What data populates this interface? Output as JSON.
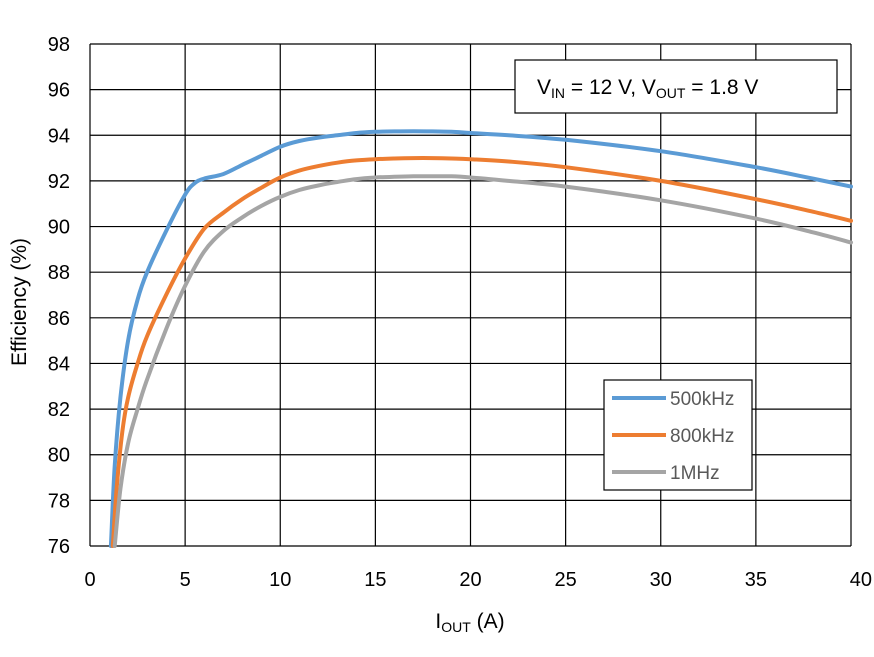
{
  "chart_data": {
    "type": "line",
    "title": "",
    "xlabel": {
      "main": "I",
      "sub": "OUT",
      "rest": " (A)"
    },
    "ylabel": "Efficiency (%)",
    "xlim": [
      0,
      40
    ],
    "ylim": [
      76,
      98
    ],
    "x_ticks": [
      "0",
      "5",
      "10",
      "15",
      "20",
      "25",
      "30",
      "35",
      "40"
    ],
    "y_ticks": [
      "76",
      "78",
      "80",
      "82",
      "84",
      "86",
      "88",
      "90",
      "92",
      "94",
      "96",
      "98"
    ],
    "grid": true,
    "annotation": {
      "v1": "V",
      "v1_sub": "IN",
      "mid": " = 12 V, V",
      "v2_sub": "OUT",
      "end": " = 1.8 V"
    },
    "legend_position": "bottom-right",
    "series": [
      {
        "name": "500kHz",
        "color": "#5B9BD5",
        "points": [
          [
            1.1,
            76
          ],
          [
            1.3,
            79.5
          ],
          [
            1.6,
            82.5
          ],
          [
            2,
            85
          ],
          [
            2.5,
            86.8
          ],
          [
            3,
            88
          ],
          [
            4,
            89.8
          ],
          [
            5,
            91.4
          ],
          [
            5.5,
            91.9
          ],
          [
            6,
            92.1
          ],
          [
            7,
            92.3
          ],
          [
            8,
            92.7
          ],
          [
            9,
            93.1
          ],
          [
            10,
            93.5
          ],
          [
            11,
            93.75
          ],
          [
            12,
            93.9
          ],
          [
            13,
            94.0
          ],
          [
            14,
            94.1
          ],
          [
            15,
            94.15
          ],
          [
            16,
            94.17
          ],
          [
            17,
            94.18
          ],
          [
            18,
            94.17
          ],
          [
            19,
            94.15
          ],
          [
            20,
            94.1
          ],
          [
            22,
            94.0
          ],
          [
            25,
            93.8
          ],
          [
            30,
            93.3
          ],
          [
            35,
            92.6
          ],
          [
            38,
            92.1
          ],
          [
            40,
            91.75
          ]
        ]
      },
      {
        "name": "800kHz",
        "color": "#ED7D31",
        "points": [
          [
            1.2,
            76
          ],
          [
            1.4,
            78.5
          ],
          [
            1.7,
            81
          ],
          [
            2,
            82.5
          ],
          [
            2.5,
            84
          ],
          [
            3,
            85.2
          ],
          [
            4,
            87
          ],
          [
            5,
            88.6
          ],
          [
            6,
            89.9
          ],
          [
            7,
            90.6
          ],
          [
            8,
            91.2
          ],
          [
            9,
            91.7
          ],
          [
            10,
            92.15
          ],
          [
            11,
            92.45
          ],
          [
            12,
            92.65
          ],
          [
            13,
            92.8
          ],
          [
            14,
            92.9
          ],
          [
            15,
            92.95
          ],
          [
            16,
            92.98
          ],
          [
            17,
            93.0
          ],
          [
            18,
            93.0
          ],
          [
            19,
            92.98
          ],
          [
            20,
            92.95
          ],
          [
            22,
            92.85
          ],
          [
            25,
            92.6
          ],
          [
            30,
            92.0
          ],
          [
            35,
            91.2
          ],
          [
            38,
            90.65
          ],
          [
            40,
            90.25
          ]
        ]
      },
      {
        "name": "1MHz",
        "color": "#A5A5A5",
        "points": [
          [
            1.3,
            76
          ],
          [
            1.6,
            78.5
          ],
          [
            2,
            80.5
          ],
          [
            2.5,
            82
          ],
          [
            3,
            83.3
          ],
          [
            4,
            85.5
          ],
          [
            5,
            87.4
          ],
          [
            6,
            88.9
          ],
          [
            7,
            89.8
          ],
          [
            8,
            90.4
          ],
          [
            9,
            90.9
          ],
          [
            10,
            91.3
          ],
          [
            11,
            91.6
          ],
          [
            12,
            91.8
          ],
          [
            13,
            91.95
          ],
          [
            14,
            92.08
          ],
          [
            15,
            92.15
          ],
          [
            16,
            92.18
          ],
          [
            17,
            92.2
          ],
          [
            18,
            92.2
          ],
          [
            19,
            92.2
          ],
          [
            20,
            92.15
          ],
          [
            22,
            92.0
          ],
          [
            25,
            91.75
          ],
          [
            30,
            91.15
          ],
          [
            35,
            90.35
          ],
          [
            38,
            89.75
          ],
          [
            40,
            89.3
          ]
        ]
      }
    ]
  }
}
